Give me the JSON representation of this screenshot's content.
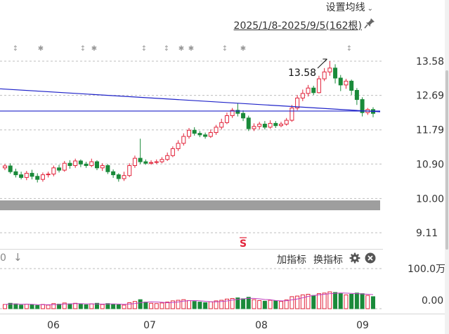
{
  "header": {
    "ma_settings_label": "设置均线",
    "date_range": "2025/1/8-2025/9/5(162根)"
  },
  "indicator_bar": {
    "left_value": "0",
    "add_label": "加指标",
    "switch_label": "换指标"
  },
  "signal_marker": "S",
  "colors": {
    "up": "#e2233a",
    "down": "#1a8a3a",
    "trendline": "#1f23c9",
    "band": "#9e9e9e",
    "ma_volume": "#c040c0"
  },
  "chart_data": {
    "type": "candlestick",
    "price_axis": {
      "ticks": [
        "13.58",
        "12.69",
        "11.79",
        "10.90",
        "10.00",
        "9.11"
      ],
      "range": [
        9.0,
        13.9
      ]
    },
    "volume_axis": {
      "ticks": [
        "100.0万",
        "0.00"
      ]
    },
    "x_labels": [
      "06",
      "07",
      "08",
      "09"
    ],
    "high_annotation": "13.58",
    "candles": [
      [
        10.8,
        10.85,
        10.74,
        10.9
      ],
      [
        10.85,
        10.7,
        10.65,
        10.92
      ],
      [
        10.7,
        10.62,
        10.55,
        10.78
      ],
      [
        10.62,
        10.55,
        10.5,
        10.7
      ],
      [
        10.55,
        10.66,
        10.48,
        10.72
      ],
      [
        10.66,
        10.58,
        10.5,
        10.75
      ],
      [
        10.58,
        10.5,
        10.42,
        10.66
      ],
      [
        10.5,
        10.62,
        10.44,
        10.68
      ],
      [
        10.62,
        10.64,
        10.55,
        10.7
      ],
      [
        10.64,
        10.8,
        10.58,
        10.86
      ],
      [
        10.8,
        10.74,
        10.68,
        10.88
      ],
      [
        10.74,
        10.92,
        10.7,
        10.98
      ],
      [
        10.92,
        10.86,
        10.78,
        11.0
      ],
      [
        10.86,
        10.98,
        10.8,
        11.04
      ],
      [
        10.98,
        10.9,
        10.82,
        11.02
      ],
      [
        10.9,
        10.86,
        10.8,
        10.96
      ],
      [
        10.86,
        10.96,
        10.82,
        11.04
      ],
      [
        10.96,
        10.8,
        10.74,
        11.0
      ],
      [
        10.8,
        10.86,
        10.72,
        10.92
      ],
      [
        10.86,
        10.7,
        10.64,
        10.9
      ],
      [
        10.7,
        10.62,
        10.54,
        10.76
      ],
      [
        10.62,
        10.52,
        10.44,
        10.66
      ],
      [
        10.52,
        10.6,
        10.46,
        10.7
      ],
      [
        10.6,
        10.86,
        10.56,
        10.92
      ],
      [
        10.86,
        11.05,
        10.8,
        11.12
      ],
      [
        11.05,
        10.96,
        10.9,
        11.56
      ],
      [
        10.96,
        10.92,
        10.88,
        11.02
      ],
      [
        10.92,
        10.94,
        10.88,
        11.0
      ],
      [
        10.94,
        10.96,
        10.9,
        11.02
      ],
      [
        10.96,
        11.02,
        10.92,
        11.08
      ],
      [
        11.02,
        11.12,
        10.98,
        11.2
      ],
      [
        11.12,
        11.3,
        11.08,
        11.36
      ],
      [
        11.3,
        11.44,
        11.24,
        11.52
      ],
      [
        11.44,
        11.62,
        11.38,
        11.7
      ],
      [
        11.62,
        11.78,
        11.56,
        11.84
      ],
      [
        11.78,
        11.7,
        11.64,
        11.86
      ],
      [
        11.7,
        11.66,
        11.6,
        11.76
      ],
      [
        11.66,
        11.62,
        11.56,
        11.72
      ],
      [
        11.62,
        11.72,
        11.58,
        11.8
      ],
      [
        11.72,
        11.86,
        11.66,
        11.92
      ],
      [
        11.86,
        11.98,
        11.8,
        12.08
      ],
      [
        11.98,
        12.16,
        11.94,
        12.24
      ],
      [
        12.16,
        12.3,
        12.1,
        12.36
      ],
      [
        12.3,
        12.22,
        12.14,
        12.48
      ],
      [
        12.22,
        12.1,
        12.02,
        12.3
      ],
      [
        12.1,
        11.82,
        11.76,
        12.16
      ],
      [
        11.82,
        11.88,
        11.76,
        11.96
      ],
      [
        11.88,
        11.94,
        11.8,
        12.0
      ],
      [
        11.94,
        11.86,
        11.8,
        12.02
      ],
      [
        11.86,
        11.96,
        11.82,
        12.04
      ],
      [
        11.96,
        11.9,
        11.84,
        12.02
      ],
      [
        11.9,
        11.94,
        11.86,
        12.0
      ],
      [
        11.94,
        12.04,
        11.9,
        12.1
      ],
      [
        12.04,
        12.36,
        12.0,
        12.44
      ],
      [
        12.36,
        12.62,
        12.3,
        12.7
      ],
      [
        12.62,
        12.74,
        12.54,
        12.84
      ],
      [
        12.74,
        12.88,
        12.66,
        12.96
      ],
      [
        12.88,
        12.76,
        12.7,
        12.94
      ],
      [
        12.76,
        13.12,
        12.74,
        13.2
      ],
      [
        13.12,
        13.3,
        13.06,
        13.4
      ],
      [
        13.3,
        13.4,
        13.2,
        13.58
      ],
      [
        13.4,
        13.14,
        13.0,
        13.5
      ],
      [
        13.14,
        12.96,
        12.8,
        13.22
      ],
      [
        12.96,
        13.06,
        12.86,
        13.12
      ],
      [
        13.06,
        12.82,
        12.7,
        13.1
      ],
      [
        12.82,
        12.58,
        12.44,
        12.88
      ],
      [
        12.58,
        12.24,
        12.14,
        12.64
      ],
      [
        12.24,
        12.32,
        12.18,
        12.36
      ],
      [
        12.32,
        12.22,
        12.12,
        12.38
      ]
    ],
    "volumes": [
      0.14,
      0.18,
      0.16,
      0.12,
      0.15,
      0.13,
      0.11,
      0.14,
      0.12,
      0.17,
      0.15,
      0.19,
      0.16,
      0.18,
      0.15,
      0.13,
      0.16,
      0.18,
      0.14,
      0.17,
      0.15,
      0.13,
      0.12,
      0.2,
      0.24,
      0.3,
      0.22,
      0.18,
      0.17,
      0.19,
      0.22,
      0.26,
      0.28,
      0.3,
      0.27,
      0.24,
      0.22,
      0.2,
      0.23,
      0.26,
      0.28,
      0.32,
      0.34,
      0.36,
      0.33,
      0.38,
      0.3,
      0.27,
      0.25,
      0.28,
      0.26,
      0.24,
      0.29,
      0.4,
      0.42,
      0.46,
      0.48,
      0.44,
      0.5,
      0.52,
      0.56,
      0.54,
      0.5,
      0.46,
      0.48,
      0.52,
      0.5,
      0.44,
      0.4
    ]
  }
}
